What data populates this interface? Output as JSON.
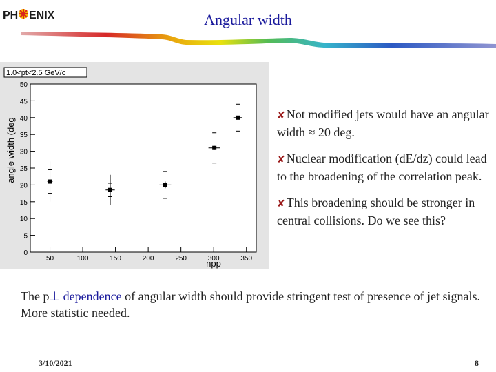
{
  "slide": {
    "logo_ph": "PH",
    "logo_enix": "ENIX",
    "title": "Angular width",
    "bullets": [
      {
        "text": "Not modified jets would have an angular width ≈ 20 deg."
      },
      {
        "text": "Nuclear modification (dE/dz) could lead to the broadening of the correlation peak."
      },
      {
        "text": "This  broadening  should be stronger in central collisions. Do we see this?"
      }
    ],
    "bottom_pre": "The p",
    "bottom_sub": "⊥",
    "bottom_hl": " dependence",
    "bottom_post": " of angular width should provide stringent  test of  presence of jet signals. More statistic needed.",
    "footer_date": "3/10/2021",
    "footer_page": "8"
  },
  "colors": {
    "title": "#1a1a9c",
    "bullet_mark": "#9b1b1b"
  },
  "chart_data": {
    "type": "scatter",
    "legend_text": "1.0<pt<2.5 GeV/c",
    "xlabel": "npp",
    "ylabel": "angle width (deg",
    "xlim": [
      20,
      365
    ],
    "ylim": [
      0,
      50
    ],
    "xticks": [
      50,
      100,
      150,
      200,
      250,
      300,
      350
    ],
    "yticks": [
      0,
      5,
      10,
      15,
      20,
      25,
      30,
      35,
      40,
      45,
      50
    ],
    "points": [
      {
        "x": 50,
        "y": 21,
        "yerr": 6.0,
        "xerr": 4,
        "sys": 3.5
      },
      {
        "x": 142,
        "y": 18.5,
        "yerr": 4.5,
        "xerr": 7,
        "sys": 2.0
      },
      {
        "x": 226,
        "y": 20,
        "yerr": 1.0,
        "xerr": 9,
        "sys": 4.0
      },
      {
        "x": 301,
        "y": 31,
        "yerr": 0.6,
        "xerr": 9,
        "sys": 4.5
      },
      {
        "x": 337,
        "y": 40,
        "yerr": 0.3,
        "xerr": 7,
        "sys": 4.0
      }
    ],
    "grid": false
  }
}
